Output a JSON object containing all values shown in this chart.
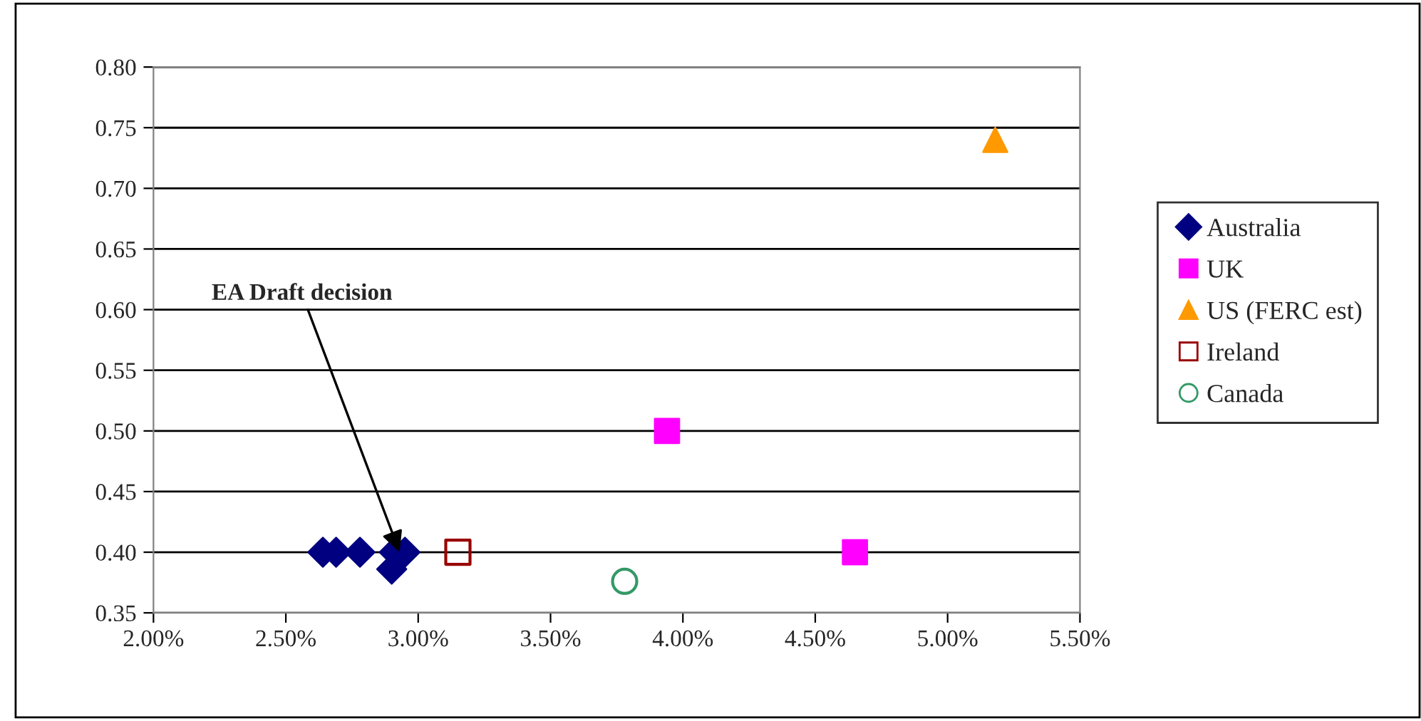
{
  "chart_data": {
    "type": "scatter",
    "series": [
      {
        "name": "Australia",
        "color": "#000080",
        "marker": "diamond",
        "x": [
          2.64,
          2.69,
          2.78,
          2.91,
          2.95,
          2.9
        ],
        "values": [
          0.4,
          0.4,
          0.4,
          0.4,
          0.4,
          0.386
        ]
      },
      {
        "name": "UK",
        "color": "#ff00ff",
        "marker": "square",
        "x": [
          3.94,
          4.65
        ],
        "values": [
          0.5,
          0.4
        ]
      },
      {
        "name": "US (FERC est)",
        "color": "#ff9900",
        "marker": "triangle",
        "x": [
          5.18
        ],
        "values": [
          0.74
        ]
      },
      {
        "name": "Ireland",
        "color": "#990000",
        "marker": "square",
        "x": [
          3.15
        ],
        "values": [
          0.4
        ]
      },
      {
        "name": "Canada",
        "color": "#339966",
        "marker": "circle",
        "x": [
          3.78
        ],
        "values": [
          0.376
        ]
      }
    ],
    "xlim": [
      2.0,
      5.5
    ],
    "xticks": [
      {
        "value": 2.0,
        "label": "2.00%"
      },
      {
        "value": 2.5,
        "label": "2.50%"
      },
      {
        "value": 3.0,
        "label": "3.00%"
      },
      {
        "value": 3.5,
        "label": "3.50%"
      },
      {
        "value": 4.0,
        "label": "4.00%"
      },
      {
        "value": 4.5,
        "label": "4.50%"
      },
      {
        "value": 5.0,
        "label": "5.00%"
      },
      {
        "value": 5.5,
        "label": "5.50%"
      }
    ],
    "ylim": [
      0.35,
      0.8
    ],
    "yticks": [
      {
        "value": 0.35,
        "label": "0.35"
      },
      {
        "value": 0.4,
        "label": "0.40"
      },
      {
        "value": 0.45,
        "label": "0.45"
      },
      {
        "value": 0.5,
        "label": "0.50"
      },
      {
        "value": 0.55,
        "label": "0.55"
      },
      {
        "value": 0.6,
        "label": "0.60"
      },
      {
        "value": 0.65,
        "label": "0.65"
      },
      {
        "value": 0.7,
        "label": "0.70"
      },
      {
        "value": 0.75,
        "label": "0.75"
      },
      {
        "value": 0.8,
        "label": "0.80"
      }
    ],
    "grid": "y",
    "legend": "right",
    "annotations": [
      {
        "text": "EA Draft decision",
        "x": 2.93,
        "y": 0.4
      }
    ]
  }
}
